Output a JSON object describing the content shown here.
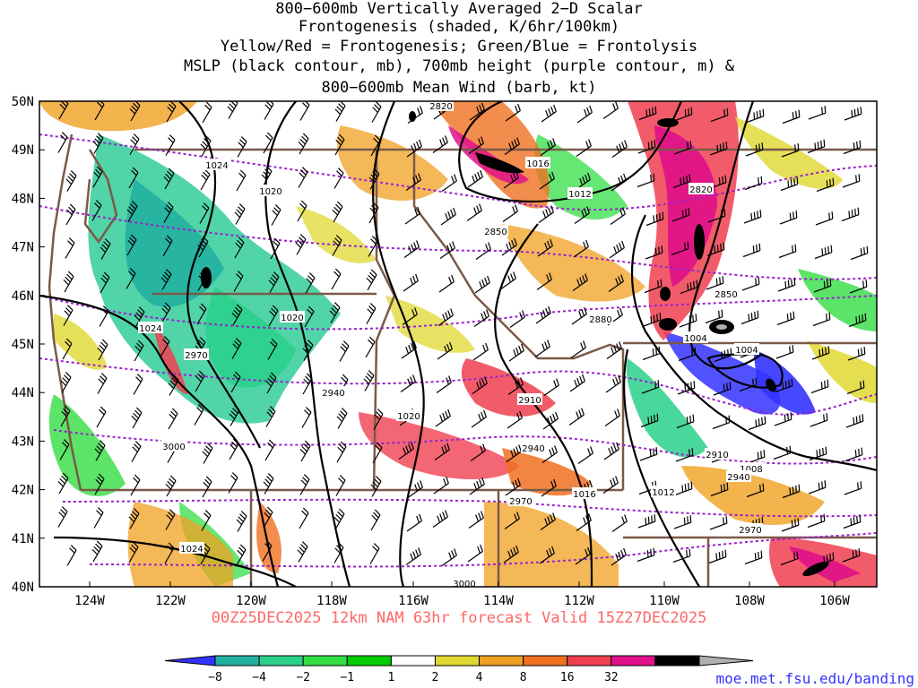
{
  "title": {
    "line1": "800−600mb Vertically Averaged 2−D Scalar",
    "line2": "Frontogenesis (shaded, K/6hr/100km)",
    "line3": "Yellow/Red = Frontogenesis;  Green/Blue = Frontolysis",
    "line4": "MSLP (black contour, mb), 700mb height (purple contour, m) &",
    "line5": "800−600mb Mean Wind (barb, kt)"
  },
  "valid_line": "00Z25DEC2025 12km NAM 63hr forecast Valid 15Z27DEC2025",
  "credit": "moe.met.fsu.edu/banding",
  "lat_labels": [
    "50N",
    "49N",
    "48N",
    "47N",
    "46N",
    "45N",
    "44N",
    "43N",
    "42N",
    "41N",
    "40N"
  ],
  "lon_labels": [
    "124W",
    "122W",
    "120W",
    "118W",
    "116W",
    "114W",
    "112W",
    "110W",
    "108W",
    "106W"
  ],
  "colorbar": {
    "labels": [
      "−8",
      "−4",
      "−2",
      "−1",
      "1",
      "2",
      "4",
      "8",
      "16",
      "32"
    ],
    "colors": [
      "#3333ff",
      "#22b0a0",
      "#2ad08a",
      "#33dd44",
      "#00cc00",
      "#ffffff",
      "#e0d830",
      "#f0a020",
      "#f07020",
      "#f04050",
      "#e0108a",
      "#000000",
      "#b0b0b0"
    ]
  },
  "mslp_labels": [
    {
      "text": "1024"
    },
    {
      "text": "1020"
    },
    {
      "text": "1024"
    },
    {
      "text": "1020"
    },
    {
      "text": "1020"
    },
    {
      "text": "1016"
    },
    {
      "text": "1012"
    },
    {
      "text": "1004"
    },
    {
      "text": "1004"
    },
    {
      "text": "1008"
    },
    {
      "text": "1012"
    },
    {
      "text": "1016"
    },
    {
      "text": "1024"
    }
  ],
  "height_labels": [
    {
      "text": "2820"
    },
    {
      "text": "2850"
    },
    {
      "text": "2820"
    },
    {
      "text": "2850"
    },
    {
      "text": "2880"
    },
    {
      "text": "2970"
    },
    {
      "text": "2940"
    },
    {
      "text": "2910"
    },
    {
      "text": "2940"
    },
    {
      "text": "3000"
    },
    {
      "text": "2910"
    },
    {
      "text": "2940"
    },
    {
      "text": "2970"
    },
    {
      "text": "2970"
    },
    {
      "text": "3000"
    }
  ]
}
